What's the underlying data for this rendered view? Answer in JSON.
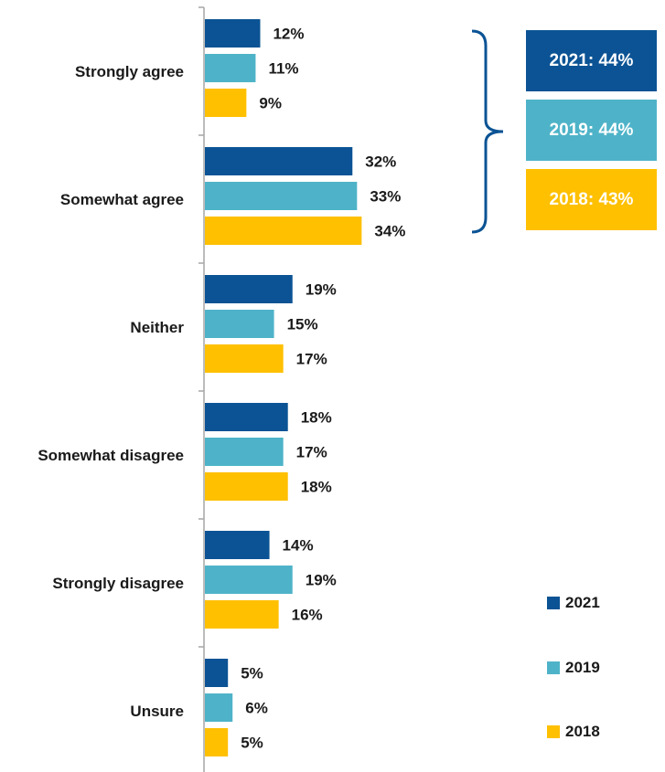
{
  "chart_data": {
    "type": "bar",
    "orientation": "horizontal",
    "categories": [
      "Strongly agree",
      "Somewhat agree",
      "Neither",
      "Somewhat disagree",
      "Strongly disagree",
      "Unsure"
    ],
    "series": [
      {
        "name": "2021",
        "color": "#0b5394",
        "values": [
          12,
          32,
          19,
          18,
          14,
          5
        ],
        "labels": [
          "12%",
          "32%",
          "19%",
          "18%",
          "14%",
          "5%"
        ]
      },
      {
        "name": "2019",
        "color": "#4eb3c8",
        "values": [
          11,
          33,
          15,
          17,
          19,
          6
        ],
        "labels": [
          "11%",
          "33%",
          "15%",
          "17%",
          "19%",
          "6%"
        ]
      },
      {
        "name": "2018",
        "color": "#ffc000",
        "values": [
          9,
          34,
          17,
          18,
          16,
          5
        ],
        "labels": [
          "9%",
          "34%",
          "17%",
          "18%",
          "16%",
          "5%"
        ]
      }
    ],
    "value_unit": "%",
    "grid": false,
    "legend_position": "bottom-right",
    "summary_bracket": {
      "applies_to": [
        "Strongly agree",
        "Somewhat agree"
      ],
      "boxes": [
        {
          "label": "2021: 44%",
          "color": "#0b5394"
        },
        {
          "label": "2019: 44%",
          "color": "#4eb3c8"
        },
        {
          "label": "2018: 43%",
          "color": "#ffc000"
        }
      ],
      "bracket_color": "#0b5394"
    },
    "legend": [
      {
        "label": "2021",
        "color": "#0b5394"
      },
      {
        "label": "2019",
        "color": "#4eb3c8"
      },
      {
        "label": "2018",
        "color": "#ffc000"
      }
    ]
  }
}
